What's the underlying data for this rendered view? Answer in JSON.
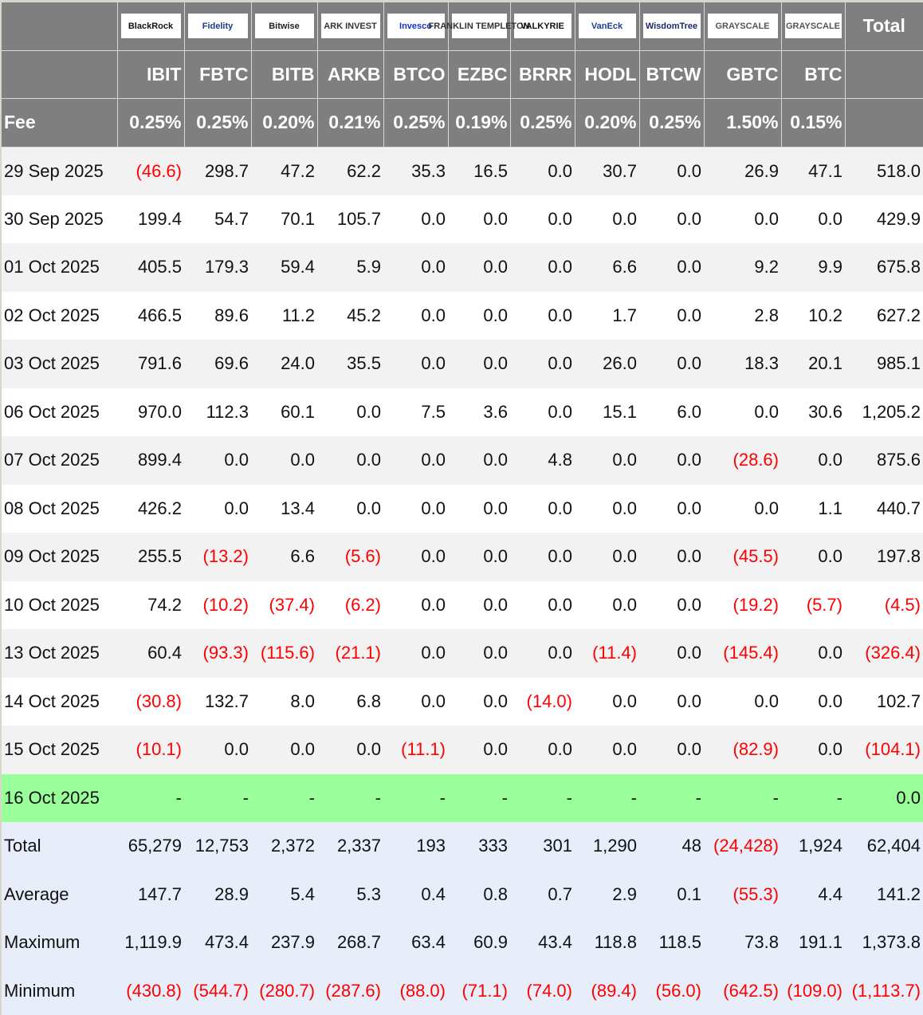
{
  "colors": {
    "header_bg": "#7f7f7f",
    "negative": "#ff0000",
    "highlight": "#99ff99",
    "summary_bg": "#e8eef9"
  },
  "logos": [
    {
      "issuer": "BlackRock",
      "text": "BlackRock",
      "color": "#111"
    },
    {
      "issuer": "Fidelity",
      "text": "Fidelity",
      "color": "#1d3a8a"
    },
    {
      "issuer": "Bitwise",
      "text": "Bitwise",
      "color": "#222"
    },
    {
      "issuer": "ARK Invest",
      "text": "ARK INVEST",
      "color": "#333"
    },
    {
      "issuer": "Invesco",
      "text": "Invesco",
      "color": "#1034c8"
    },
    {
      "issuer": "Franklin Templeton",
      "text": "FRANKLIN TEMPLETON",
      "color": "#333"
    },
    {
      "issuer": "Valkyrie",
      "text": "VALKYRIE",
      "color": "#111"
    },
    {
      "issuer": "VanEck",
      "text": "VanEck",
      "color": "#1d3f8f"
    },
    {
      "issuer": "WisdomTree",
      "text": "WisdomTree",
      "color": "#1b2a66"
    },
    {
      "issuer": "Grayscale",
      "text": "GRAYSCALE",
      "color": "#555"
    },
    {
      "issuer": "Grayscale",
      "text": "GRAYSCALE",
      "color": "#555"
    }
  ],
  "total_header": "Total",
  "fee_label": "Fee",
  "tickers": [
    "IBIT",
    "FBTC",
    "BITB",
    "ARKB",
    "BTCO",
    "EZBC",
    "BRRR",
    "HODL",
    "BTCW",
    "GBTC",
    "BTC"
  ],
  "fees": [
    "0.25%",
    "0.25%",
    "0.20%",
    "0.21%",
    "0.25%",
    "0.19%",
    "0.25%",
    "0.20%",
    "0.25%",
    "1.50%",
    "0.15%"
  ],
  "rows": [
    {
      "date": "29 Sep 2025",
      "values": [
        "(46.6)",
        "298.7",
        "47.2",
        "62.2",
        "35.3",
        "16.5",
        "0.0",
        "30.7",
        "0.0",
        "26.9",
        "47.1",
        "518.0"
      ]
    },
    {
      "date": "30 Sep 2025",
      "values": [
        "199.4",
        "54.7",
        "70.1",
        "105.7",
        "0.0",
        "0.0",
        "0.0",
        "0.0",
        "0.0",
        "0.0",
        "0.0",
        "429.9"
      ]
    },
    {
      "date": "01 Oct 2025",
      "values": [
        "405.5",
        "179.3",
        "59.4",
        "5.9",
        "0.0",
        "0.0",
        "0.0",
        "6.6",
        "0.0",
        "9.2",
        "9.9",
        "675.8"
      ]
    },
    {
      "date": "02 Oct 2025",
      "values": [
        "466.5",
        "89.6",
        "11.2",
        "45.2",
        "0.0",
        "0.0",
        "0.0",
        "1.7",
        "0.0",
        "2.8",
        "10.2",
        "627.2"
      ]
    },
    {
      "date": "03 Oct 2025",
      "values": [
        "791.6",
        "69.6",
        "24.0",
        "35.5",
        "0.0",
        "0.0",
        "0.0",
        "26.0",
        "0.0",
        "18.3",
        "20.1",
        "985.1"
      ]
    },
    {
      "date": "06 Oct 2025",
      "values": [
        "970.0",
        "112.3",
        "60.1",
        "0.0",
        "7.5",
        "3.6",
        "0.0",
        "15.1",
        "6.0",
        "0.0",
        "30.6",
        "1,205.2"
      ]
    },
    {
      "date": "07 Oct 2025",
      "values": [
        "899.4",
        "0.0",
        "0.0",
        "0.0",
        "0.0",
        "0.0",
        "4.8",
        "0.0",
        "0.0",
        "(28.6)",
        "0.0",
        "875.6"
      ]
    },
    {
      "date": "08 Oct 2025",
      "values": [
        "426.2",
        "0.0",
        "13.4",
        "0.0",
        "0.0",
        "0.0",
        "0.0",
        "0.0",
        "0.0",
        "0.0",
        "1.1",
        "440.7"
      ]
    },
    {
      "date": "09 Oct 2025",
      "values": [
        "255.5",
        "(13.2)",
        "6.6",
        "(5.6)",
        "0.0",
        "0.0",
        "0.0",
        "0.0",
        "0.0",
        "(45.5)",
        "0.0",
        "197.8"
      ]
    },
    {
      "date": "10 Oct 2025",
      "values": [
        "74.2",
        "(10.2)",
        "(37.4)",
        "(6.2)",
        "0.0",
        "0.0",
        "0.0",
        "0.0",
        "0.0",
        "(19.2)",
        "(5.7)",
        "(4.5)"
      ]
    },
    {
      "date": "13 Oct 2025",
      "values": [
        "60.4",
        "(93.3)",
        "(115.6)",
        "(21.1)",
        "0.0",
        "0.0",
        "0.0",
        "(11.4)",
        "0.0",
        "(145.4)",
        "0.0",
        "(326.4)"
      ]
    },
    {
      "date": "14 Oct 2025",
      "values": [
        "(30.8)",
        "132.7",
        "8.0",
        "6.8",
        "0.0",
        "0.0",
        "(14.0)",
        "0.0",
        "0.0",
        "0.0",
        "0.0",
        "102.7"
      ]
    },
    {
      "date": "15 Oct 2025",
      "values": [
        "(10.1)",
        "0.0",
        "0.0",
        "0.0",
        "(11.1)",
        "0.0",
        "0.0",
        "0.0",
        "0.0",
        "(82.9)",
        "0.0",
        "(104.1)"
      ]
    },
    {
      "date": "16 Oct 2025",
      "highlight": true,
      "values": [
        "-",
        "-",
        "-",
        "-",
        "-",
        "-",
        "-",
        "-",
        "-",
        "-",
        "-",
        "0.0"
      ]
    }
  ],
  "summary": [
    {
      "label": "Total",
      "values": [
        "65,279",
        "12,753",
        "2,372",
        "2,337",
        "193",
        "333",
        "301",
        "1,290",
        "48",
        "(24,428)",
        "1,924",
        "62,404"
      ]
    },
    {
      "label": "Average",
      "values": [
        "147.7",
        "28.9",
        "5.4",
        "5.3",
        "0.4",
        "0.8",
        "0.7",
        "2.9",
        "0.1",
        "(55.3)",
        "4.4",
        "141.2"
      ]
    },
    {
      "label": "Maximum",
      "values": [
        "1,119.9",
        "473.4",
        "237.9",
        "268.7",
        "63.4",
        "60.9",
        "43.4",
        "118.8",
        "118.5",
        "73.8",
        "191.1",
        "1,373.8"
      ]
    },
    {
      "label": "Minimum",
      "values": [
        "(430.8)",
        "(544.7)",
        "(280.7)",
        "(287.6)",
        "(88.0)",
        "(71.1)",
        "(74.0)",
        "(89.4)",
        "(56.0)",
        "(642.5)",
        "(109.0)",
        "(1,113.7)"
      ]
    }
  ]
}
